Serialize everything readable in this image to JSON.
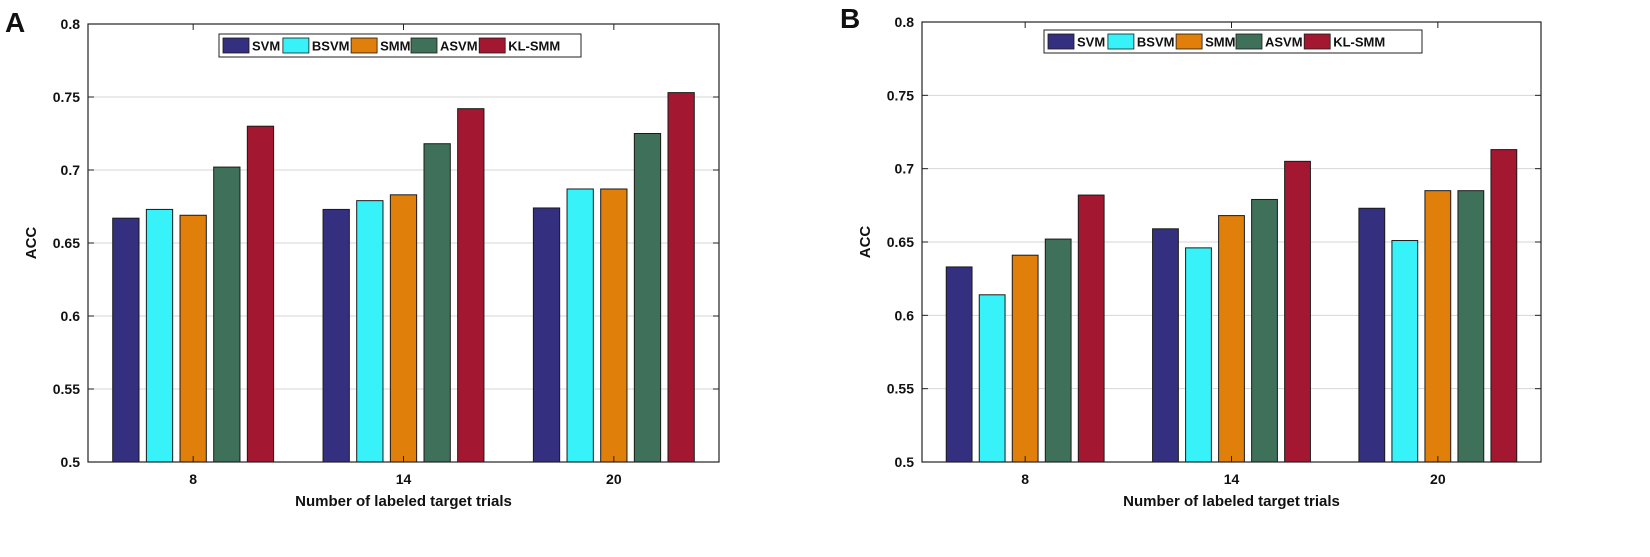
{
  "chart_data": [
    {
      "type": "bar",
      "panel_label": "A",
      "title": "",
      "xlabel": "Number of  labeled target trials",
      "ylabel": "ACC",
      "categories": [
        "8",
        "14",
        "20"
      ],
      "ylim": [
        0.5,
        0.8
      ],
      "yticks": [
        0.5,
        0.55,
        0.6,
        0.65,
        0.7,
        0.75,
        0.8
      ],
      "grid": true,
      "legend_position": "top-center",
      "series": [
        {
          "name": "SVM",
          "color": "#34307f",
          "values": [
            0.667,
            0.673,
            0.674
          ]
        },
        {
          "name": "BSVM",
          "color": "#37f2f8",
          "values": [
            0.673,
            0.679,
            0.687
          ]
        },
        {
          "name": "SMM",
          "color": "#e07f0a",
          "values": [
            0.669,
            0.683,
            0.687
          ]
        },
        {
          "name": "ASVM",
          "color": "#3f715a",
          "values": [
            0.702,
            0.718,
            0.725
          ]
        },
        {
          "name": "KL-SMM",
          "color": "#a31830",
          "values": [
            0.73,
            0.742,
            0.753
          ]
        }
      ]
    },
    {
      "type": "bar",
      "panel_label": "B",
      "title": "",
      "xlabel": "Number of labeled target trials",
      "ylabel": "ACC",
      "categories": [
        "8",
        "14",
        "20"
      ],
      "ylim": [
        0.5,
        0.8
      ],
      "yticks": [
        0.5,
        0.55,
        0.6,
        0.65,
        0.7,
        0.75,
        0.8
      ],
      "grid": true,
      "legend_position": "top-center",
      "series": [
        {
          "name": "SVM",
          "color": "#34307f",
          "values": [
            0.633,
            0.659,
            0.673
          ]
        },
        {
          "name": "BSVM",
          "color": "#37f2f8",
          "values": [
            0.614,
            0.646,
            0.651
          ]
        },
        {
          "name": "SMM",
          "color": "#e07f0a",
          "values": [
            0.641,
            0.668,
            0.685
          ]
        },
        {
          "name": "ASVM",
          "color": "#3f715a",
          "values": [
            0.652,
            0.679,
            0.685
          ]
        },
        {
          "name": "KL-SMM",
          "color": "#a31830",
          "values": [
            0.682,
            0.705,
            0.713
          ]
        }
      ]
    }
  ]
}
